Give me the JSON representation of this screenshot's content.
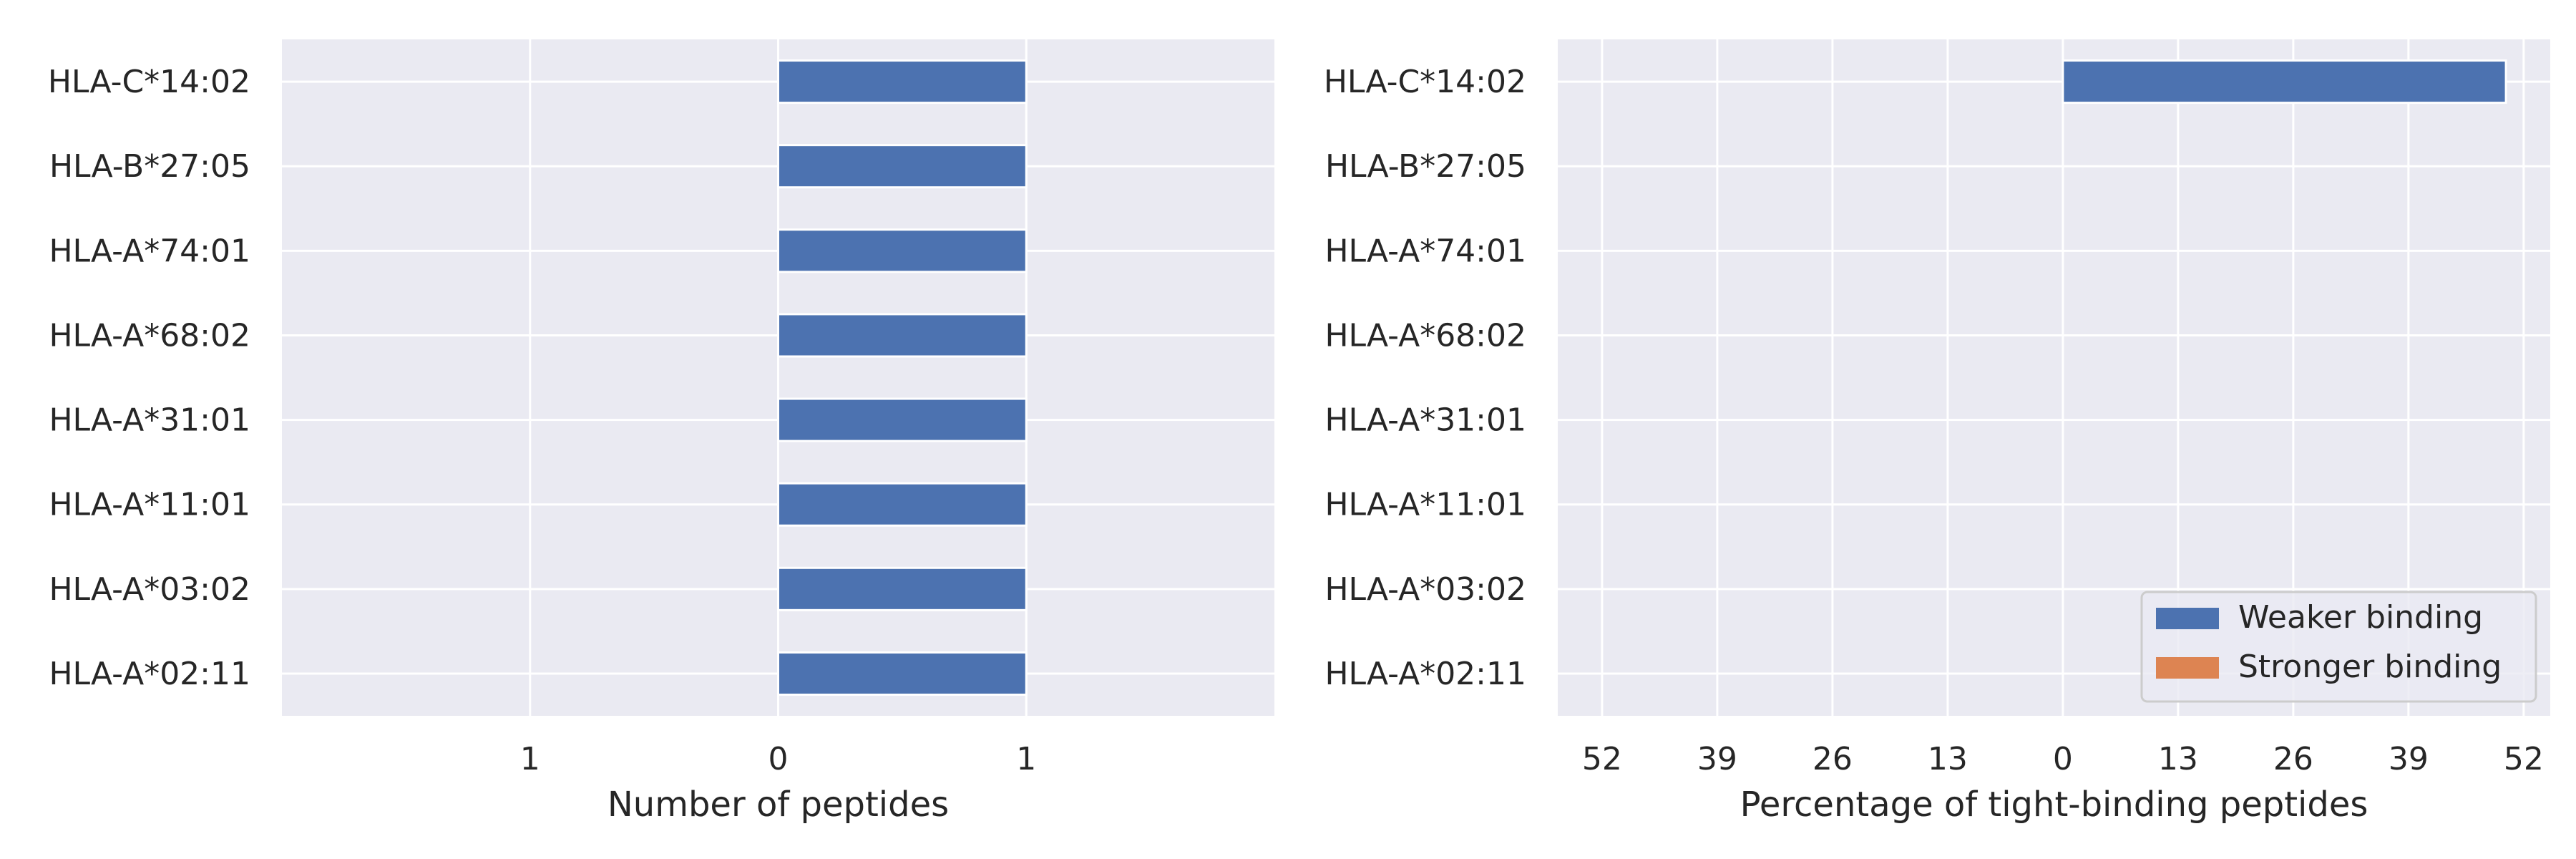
{
  "chart_data": [
    {
      "type": "bar",
      "orientation": "horizontal",
      "title": "",
      "xlabel": "Number of peptides",
      "ylabel": "",
      "categories": [
        "HLA-C*14:02",
        "HLA-B*27:05",
        "HLA-A*74:01",
        "HLA-A*68:02",
        "HLA-A*31:01",
        "HLA-A*11:01",
        "HLA-A*03:02",
        "HLA-A*02:11"
      ],
      "series": [
        {
          "values": [
            1,
            1,
            1,
            1,
            1,
            1,
            1,
            1
          ],
          "color": "#4c72b0"
        }
      ],
      "xlim": [
        -2,
        2
      ],
      "xticks": [
        -1,
        0,
        1
      ],
      "xtick_labels": [
        "1",
        "0",
        "1"
      ],
      "grid": true,
      "background": "#eaeaf2",
      "grid_color": "#ffffff"
    },
    {
      "type": "bar",
      "orientation": "horizontal",
      "title": "",
      "xlabel": "Percentage of tight-binding peptides",
      "ylabel": "",
      "categories": [
        "HLA-C*14:02",
        "HLA-B*27:05",
        "HLA-A*74:01",
        "HLA-A*68:02",
        "HLA-A*31:01",
        "HLA-A*11:01",
        "HLA-A*03:02",
        "HLA-A*02:11"
      ],
      "series": [
        {
          "name": "Weaker binding",
          "values": [
            50,
            0,
            0,
            0,
            0,
            0,
            0,
            0
          ],
          "color": "#4c72b0"
        },
        {
          "name": "Stronger binding",
          "values": [
            0,
            0,
            0,
            0,
            0,
            0,
            0,
            0
          ],
          "color": "#dd8452"
        }
      ],
      "xlim": [
        -57,
        55
      ],
      "xticks": [
        -52,
        -39,
        -26,
        -13,
        0,
        13,
        26,
        39,
        52
      ],
      "xtick_labels": [
        "52",
        "39",
        "26",
        "13",
        "0",
        "13",
        "26",
        "39",
        "52"
      ],
      "grid": true,
      "legend_position": "bottom-right",
      "background": "#eaeaf2",
      "grid_color": "#ffffff"
    }
  ]
}
